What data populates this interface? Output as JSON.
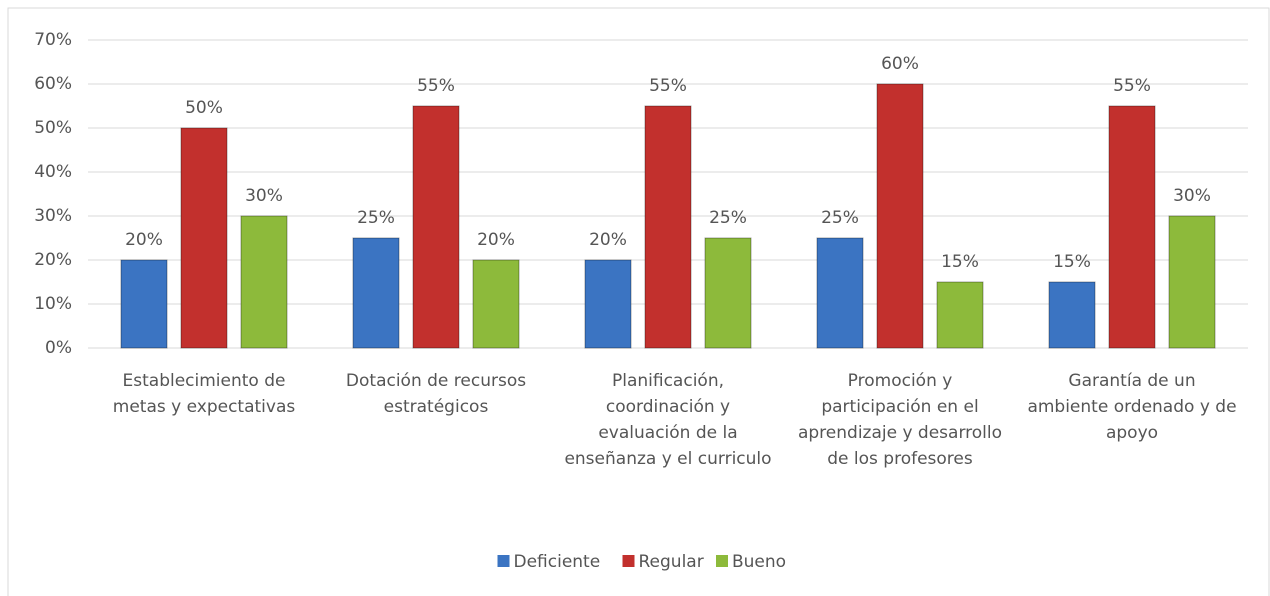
{
  "chart_data": {
    "type": "bar",
    "categories": [
      "Establecimiento de metas y expectativas",
      "Dotación de recursos estratégicos",
      "Planificación, coordinación y evaluación de la enseñanza y el curriculo",
      "Promoción y participación en el aprendizaje y desarrollo de los profesores",
      "Garantía de un ambiente ordenado y de apoyo"
    ],
    "series": [
      {
        "name": "Deficiente",
        "color": "#3b74c2",
        "values": [
          20,
          25,
          20,
          25,
          15
        ],
        "value_labels": [
          "20%",
          "25%",
          "20%",
          "25%",
          "15%"
        ]
      },
      {
        "name": "Regular",
        "color": "#c2302d",
        "values": [
          50,
          55,
          55,
          60,
          55
        ],
        "value_labels": [
          "50%",
          "55%",
          "55%",
          "60%",
          "55%"
        ]
      },
      {
        "name": "Bueno",
        "color": "#8dba3b",
        "values": [
          30,
          20,
          25,
          15,
          30
        ],
        "value_labels": [
          "30%",
          "20%",
          "25%",
          "15%",
          "30%"
        ]
      }
    ],
    "ylim": [
      0,
      70
    ],
    "yticks": [
      {
        "value": 0,
        "label": "0%"
      },
      {
        "value": 10,
        "label": "10%"
      },
      {
        "value": 20,
        "label": "20%"
      },
      {
        "value": 30,
        "label": "30%"
      },
      {
        "value": 40,
        "label": "40%"
      },
      {
        "value": 50,
        "label": "50%"
      },
      {
        "value": 60,
        "label": "60%"
      },
      {
        "value": 70,
        "label": "70%"
      }
    ],
    "grid": true,
    "legend": "bottom"
  }
}
